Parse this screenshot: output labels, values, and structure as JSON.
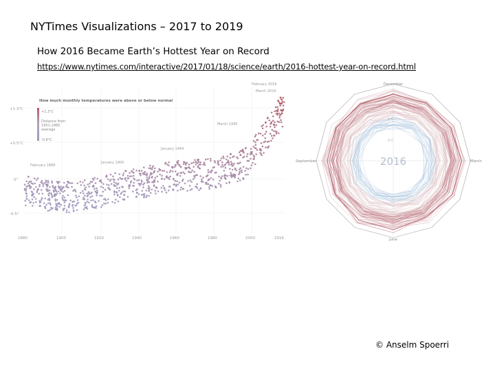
{
  "slide": {
    "title": "NYTimes Visualizations – 2017 to 2019",
    "subtitle": "How 2016 Became Earth’s Hottest Year on Record",
    "url": "https://www.nytimes.com/interactive/2017/01/18/science/earth/2016-hottest-year-on-record.html",
    "footer": "© Anselm Spoerri"
  },
  "scatter_chart": {
    "title": "How much monthly temperatures were above or below normal",
    "legend": {
      "top": "+1.3°C",
      "middle": "Distance from\n1951-1980\naverage",
      "bottom": "-0.6°C"
    },
    "y_ticks": [
      "+1.3°C",
      "+0.5°C",
      "0°",
      "-0.5°"
    ],
    "x_ticks": [
      "1880",
      "1900",
      "1920",
      "1940",
      "1960",
      "1980",
      "2000",
      "2016"
    ],
    "annotations": [
      "February 2016",
      "March 2016",
      "March 1990",
      "January 1944",
      "January 1900",
      "February 1889"
    ]
  },
  "radial_chart": {
    "center_label": "2016",
    "months": {
      "top": "December",
      "right": "March",
      "bottom": "June",
      "left": "September"
    },
    "ring_labels": [
      "1°C",
      "0°C"
    ]
  },
  "colors": {
    "warm": "#b25a66",
    "cool": "#9a9bc4",
    "neutral": "#b8a2b8",
    "axis": "#999999"
  }
}
